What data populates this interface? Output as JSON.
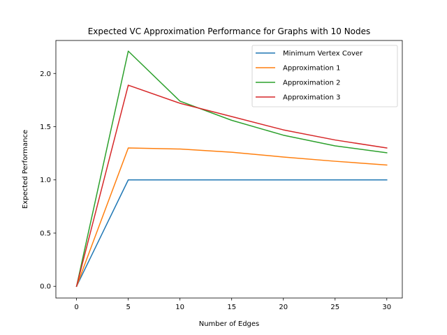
{
  "chart_data": {
    "type": "line",
    "title": "Expected VC Approximation Performance for Graphs with 10 Nodes",
    "xlabel": "Number of Edges",
    "ylabel": "Expected Performance",
    "x": [
      0,
      5,
      10,
      15,
      20,
      25,
      30
    ],
    "xlim": [
      -2,
      31.5
    ],
    "ylim": [
      -0.11,
      2.31
    ],
    "xticks": [
      0,
      5,
      10,
      15,
      20,
      25,
      30
    ],
    "yticks": [
      0.0,
      0.5,
      1.0,
      1.5,
      2.0
    ],
    "xtick_labels": [
      "0",
      "5",
      "10",
      "15",
      "20",
      "25",
      "30"
    ],
    "ytick_labels": [
      "0.0",
      "0.5",
      "1.0",
      "1.5",
      "2.0"
    ],
    "grid": false,
    "legend_position": "top-right",
    "series": [
      {
        "name": "Minimum Vertex Cover",
        "color": "#1f77b4",
        "values": [
          0.0,
          1.0,
          1.0,
          1.0,
          1.0,
          1.0,
          1.0
        ]
      },
      {
        "name": "Approximation 1",
        "color": "#ff7f0e",
        "values": [
          0.0,
          1.3,
          1.29,
          1.26,
          1.215,
          1.175,
          1.14
        ]
      },
      {
        "name": "Approximation 2",
        "color": "#2ca02c",
        "values": [
          0.0,
          2.21,
          1.74,
          1.56,
          1.42,
          1.32,
          1.255
        ]
      },
      {
        "name": "Approximation 3",
        "color": "#d62728",
        "values": [
          0.0,
          1.89,
          1.72,
          1.595,
          1.47,
          1.375,
          1.3
        ]
      }
    ]
  }
}
